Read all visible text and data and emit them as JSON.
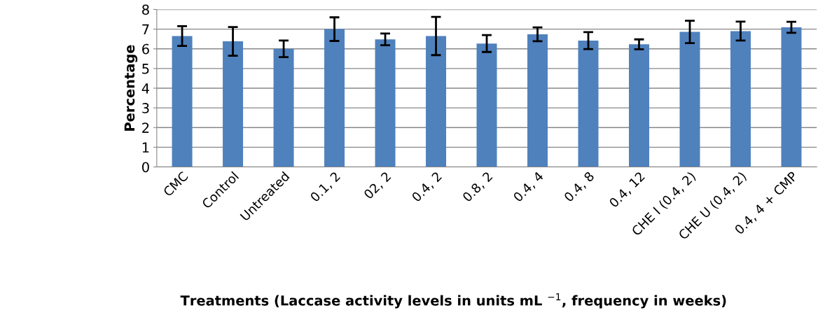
{
  "chart_data": {
    "type": "bar",
    "xlabel": "Treatments (Laccase activity levels in units mL $^{−1}$, frequency in weeks)",
    "ylabel": "Percentage",
    "categories": [
      "CMC",
      "Control",
      "Untreated",
      "0.1, 2",
      "02, 2",
      "0.4, 2",
      "0.8, 2",
      "0.4, 4",
      "0.4, 8",
      "0.4, 12",
      "CHE I (0.4, 2)",
      "CHE U (0.4, 2)",
      "0.4, 4 + CMP"
    ],
    "values": [
      6.65,
      6.38,
      6.0,
      7.0,
      6.48,
      6.65,
      6.27,
      6.74,
      6.42,
      6.23,
      6.86,
      6.9,
      7.09
    ],
    "errors": [
      0.5,
      0.73,
      0.42,
      0.6,
      0.3,
      0.97,
      0.43,
      0.35,
      0.43,
      0.25,
      0.57,
      0.48,
      0.28
    ],
    "color": "#4f81bd",
    "ylim": [
      0,
      8
    ],
    "yticks": [
      0,
      1,
      2,
      3,
      4,
      5,
      6,
      7,
      8
    ],
    "grid": "y"
  }
}
